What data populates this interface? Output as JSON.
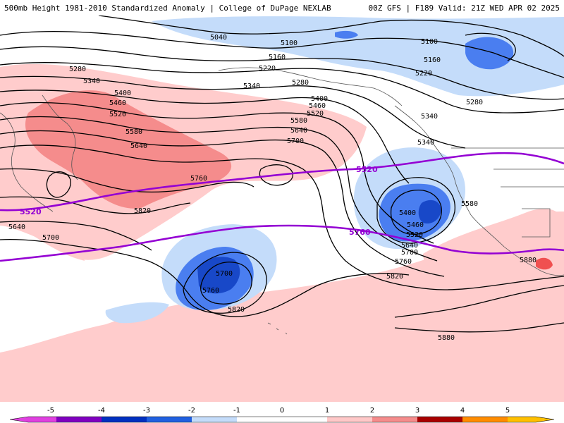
{
  "header": {
    "title_left": "500mb Height 1981-2010 Standardized Anomaly | College of DuPage NEXLAB",
    "title_right": "00Z GFS | F189 Valid: 21Z WED APR 02 2025"
  },
  "map": {
    "contour_labels": [
      "5040",
      "5100",
      "5160",
      "5220",
      "5280",
      "5340",
      "5400",
      "5460",
      "5520",
      "5580",
      "5640",
      "5700",
      "5760",
      "5820",
      "5880"
    ],
    "highlight_contour_labels": [
      "5520",
      "5760"
    ],
    "highlight_color": "#9400d3"
  },
  "colorbar": {
    "ticks": [
      "-5",
      "-4",
      "-3",
      "-2",
      "-1",
      "0",
      "1",
      "2",
      "3",
      "4",
      "5"
    ],
    "colors": [
      "#e040e0",
      "#8000c0",
      "#0030c0",
      "#2060e0",
      "#6b96f0",
      "#c4dcfa",
      "#ffffff",
      "#ffffff",
      "#ffc8c8",
      "#f58c8c",
      "#f05050",
      "#d81010",
      "#a80000",
      "#ff8c00",
      "#ffc000"
    ]
  }
}
